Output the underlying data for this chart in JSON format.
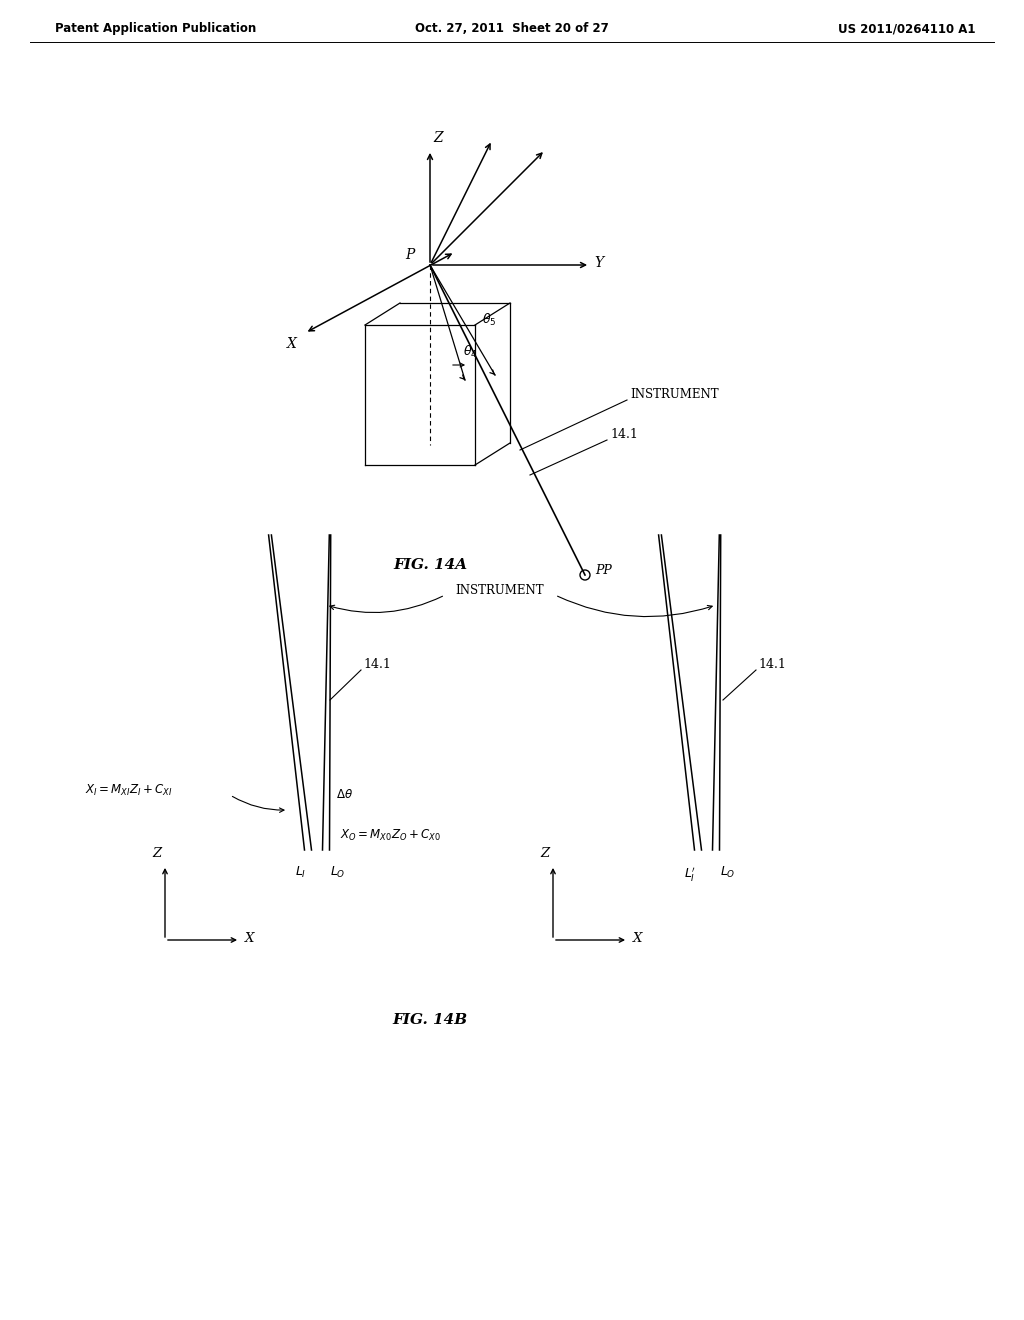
{
  "header_left": "Patent Application Publication",
  "header_mid": "Oct. 27, 2011  Sheet 20 of 27",
  "header_right": "US 2011/0264110 A1",
  "fig14a_label": "FIG. 14A",
  "fig14b_label": "FIG. 14B",
  "background": "#ffffff",
  "line_color": "#000000",
  "gray_color": "#888888"
}
